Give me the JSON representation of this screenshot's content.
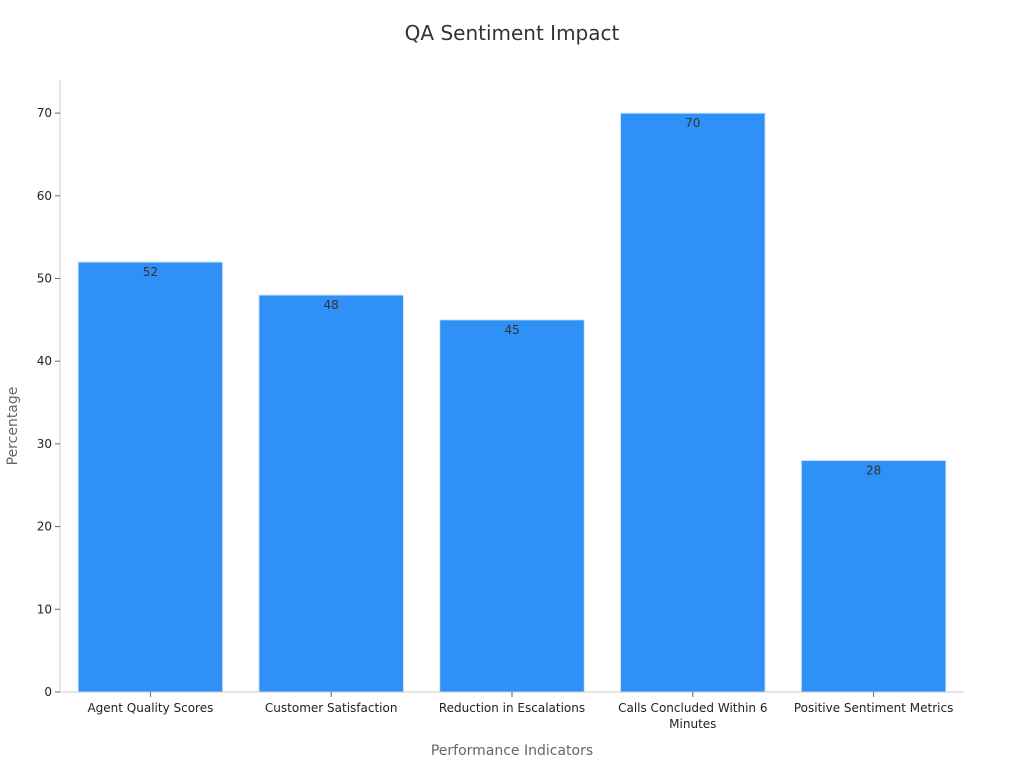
{
  "chart_data": {
    "type": "bar",
    "title": "QA Sentiment Impact",
    "xlabel": "Performance Indicators",
    "ylabel": "Percentage",
    "categories": [
      [
        "Agent Quality Scores"
      ],
      [
        "Customer Satisfaction"
      ],
      [
        "Reduction in Escalations"
      ],
      [
        "Calls Concluded Within 6",
        "Minutes"
      ],
      [
        "Positive Sentiment Metrics"
      ]
    ],
    "values": [
      52,
      48,
      45,
      70,
      28
    ],
    "ylim": [
      0,
      74
    ],
    "yticks": [
      0,
      10,
      20,
      30,
      40,
      50,
      60,
      70
    ],
    "bar_color": "#2F91F7",
    "bar_edge_color": "#D9E8F8",
    "axis_color": "#CCCCCC",
    "grid": false,
    "legend": "none"
  }
}
